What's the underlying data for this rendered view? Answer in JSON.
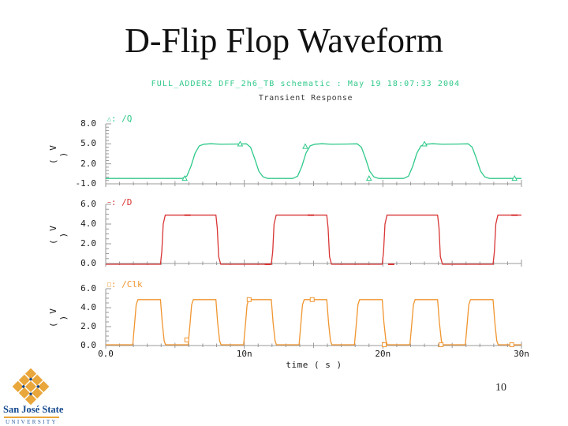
{
  "slide": {
    "title": "D-Flip Flop Waveform",
    "page_number": "10",
    "logo": {
      "wordmark": "San José State",
      "university": "UNIVERSITY"
    }
  },
  "colors": {
    "q_green": "#2fc98a",
    "d_red": "#d93535",
    "clk_orange": "#f0952f",
    "axis_gray": "#9a9a9a",
    "tick_text": "#1a1a1a",
    "subtitle_gray": "#3c3c3c",
    "sjsu_blue": "#15498f",
    "sjsu_gold": "#e9a63b"
  },
  "chart_data": {
    "type": "line",
    "header": "FULL_ADDER2 DFF_2h6_TB schematic : May 19 18:07:33 2004",
    "title": "Transient Response",
    "xlabel": "time ( s )",
    "xlim": [
      0,
      30
    ],
    "x_unit": "ns",
    "grid": false,
    "x_ticks": [
      {
        "label": "0.0",
        "t": 0
      },
      {
        "label": "10n",
        "t": 10
      },
      {
        "label": "20n",
        "t": 20
      },
      {
        "label": "30n",
        "t": 30
      }
    ],
    "plots": [
      {
        "signal": "/Q",
        "marker": "triangle",
        "marker_glyph": "△",
        "color": "#2fc98a",
        "ylabel": "( V )",
        "ylim": [
          -1,
          8
        ],
        "y_ticks": [
          {
            "label": "8.0",
            "v": 8
          },
          {
            "label": "5.0",
            "v": 5
          },
          {
            "label": "2.0",
            "v": 2
          },
          {
            "label": "-1.0",
            "v": -1
          }
        ],
        "low_V": -0.2,
        "high_V": 5.0,
        "edges": "rises at 6n, 14n, 22n; falls at 10n, 18n, 26n (slewed edges)",
        "points": [
          [
            0,
            -0.2
          ],
          [
            5.5,
            -0.2
          ],
          [
            5.85,
            0.15
          ],
          [
            6.15,
            1.6
          ],
          [
            6.45,
            3.6
          ],
          [
            6.75,
            4.7
          ],
          [
            7.1,
            4.95
          ],
          [
            7.6,
            5.02
          ],
          [
            8.3,
            4.93
          ],
          [
            9.4,
            4.97
          ],
          [
            10.15,
            5.0
          ],
          [
            10.45,
            4.5
          ],
          [
            10.75,
            2.8
          ],
          [
            11.05,
            0.9
          ],
          [
            11.35,
            0.05
          ],
          [
            11.7,
            -0.2
          ],
          [
            13.5,
            -0.2
          ],
          [
            13.85,
            0.15
          ],
          [
            14.15,
            1.6
          ],
          [
            14.45,
            3.6
          ],
          [
            14.75,
            4.7
          ],
          [
            15.1,
            4.95
          ],
          [
            15.6,
            5.02
          ],
          [
            16.3,
            4.93
          ],
          [
            17.4,
            4.97
          ],
          [
            18.15,
            5.0
          ],
          [
            18.45,
            4.5
          ],
          [
            18.75,
            2.8
          ],
          [
            19.05,
            0.9
          ],
          [
            19.35,
            0.05
          ],
          [
            19.7,
            -0.2
          ],
          [
            21.5,
            -0.2
          ],
          [
            21.85,
            0.15
          ],
          [
            22.15,
            1.6
          ],
          [
            22.45,
            3.6
          ],
          [
            22.75,
            4.7
          ],
          [
            23.1,
            4.95
          ],
          [
            23.6,
            5.02
          ],
          [
            24.3,
            4.93
          ],
          [
            25.4,
            4.97
          ],
          [
            26.15,
            5.0
          ],
          [
            26.45,
            4.5
          ],
          [
            26.75,
            2.8
          ],
          [
            27.05,
            0.9
          ],
          [
            27.35,
            0.05
          ],
          [
            27.7,
            -0.2
          ],
          [
            30,
            -0.2
          ]
        ],
        "markers": [
          [
            5.7,
            -0.2
          ],
          [
            9.7,
            4.97
          ],
          [
            14.4,
            4.6
          ],
          [
            19.0,
            -0.2
          ],
          [
            23.0,
            4.97
          ],
          [
            29.5,
            -0.2
          ]
        ]
      },
      {
        "signal": "/D",
        "marker": "dash",
        "marker_glyph": "−",
        "color": "#d93535",
        "ylabel": "( V )",
        "ylim": [
          0,
          6
        ],
        "y_ticks": [
          {
            "label": "6.0",
            "v": 6
          },
          {
            "label": "4.0",
            "v": 4
          },
          {
            "label": "2.0",
            "v": 2
          },
          {
            "label": "0.0",
            "v": 0
          }
        ],
        "low_V": 0.0,
        "high_V": 4.9,
        "edges": "period 8n, 50% duty: rises at 4n, 12n, 20n, 28n; falls at 8n, 16n, 24n",
        "points": [
          [
            0,
            -0.08
          ],
          [
            3.95,
            -0.08
          ],
          [
            4.05,
            1.2
          ],
          [
            4.15,
            4.0
          ],
          [
            4.3,
            4.9
          ],
          [
            7.95,
            4.9
          ],
          [
            8.05,
            3.6
          ],
          [
            8.15,
            0.7
          ],
          [
            8.3,
            -0.08
          ],
          [
            11.95,
            -0.08
          ],
          [
            12.05,
            1.2
          ],
          [
            12.15,
            4.0
          ],
          [
            12.3,
            4.9
          ],
          [
            15.95,
            4.9
          ],
          [
            16.05,
            3.6
          ],
          [
            16.15,
            0.7
          ],
          [
            16.3,
            -0.08
          ],
          [
            19.95,
            -0.08
          ],
          [
            20.05,
            1.2
          ],
          [
            20.15,
            4.0
          ],
          [
            20.3,
            4.9
          ],
          [
            23.95,
            4.9
          ],
          [
            24.05,
            3.6
          ],
          [
            24.15,
            0.7
          ],
          [
            24.3,
            -0.08
          ],
          [
            27.95,
            -0.08
          ],
          [
            28.05,
            1.2
          ],
          [
            28.15,
            4.0
          ],
          [
            28.3,
            4.9
          ],
          [
            30,
            4.9
          ]
        ],
        "markers": [
          [
            5.9,
            4.9
          ],
          [
            11.7,
            -0.08
          ],
          [
            14.8,
            4.9
          ],
          [
            20.6,
            -0.08
          ],
          [
            29.5,
            4.9
          ]
        ]
      },
      {
        "signal": "/Clk",
        "marker": "square",
        "marker_glyph": "□",
        "color": "#f0952f",
        "ylabel": "( V )",
        "ylim": [
          0,
          6
        ],
        "y_ticks": [
          {
            "label": "6.0",
            "v": 6
          },
          {
            "label": "4.0",
            "v": 4
          },
          {
            "label": "2.0",
            "v": 2
          },
          {
            "label": "0.0",
            "v": 0
          }
        ],
        "low_V": 0.0,
        "high_V": 4.9,
        "edges": "period 4n, 50% duty: rises at 2n, 6n, 10n, 14n, 18n, 22n, 26n; falls at 4n, 8n, 12n, 16n, 20n, 24n, 28n",
        "points": [
          [
            0,
            0.08
          ],
          [
            1.95,
            0.08
          ],
          [
            2.08,
            2.2
          ],
          [
            2.2,
            4.3
          ],
          [
            2.32,
            4.85
          ],
          [
            3.95,
            4.85
          ],
          [
            4.08,
            2.4
          ],
          [
            4.22,
            0.5
          ],
          [
            4.32,
            0.08
          ],
          [
            5.95,
            0.08
          ],
          [
            6.08,
            2.2
          ],
          [
            6.2,
            4.3
          ],
          [
            6.32,
            4.85
          ],
          [
            7.95,
            4.85
          ],
          [
            8.08,
            2.4
          ],
          [
            8.22,
            0.5
          ],
          [
            8.32,
            0.08
          ],
          [
            9.95,
            0.08
          ],
          [
            10.08,
            2.2
          ],
          [
            10.2,
            4.3
          ],
          [
            10.32,
            4.85
          ],
          [
            11.95,
            4.85
          ],
          [
            12.08,
            2.4
          ],
          [
            12.22,
            0.5
          ],
          [
            12.32,
            0.08
          ],
          [
            13.95,
            0.08
          ],
          [
            14.08,
            2.2
          ],
          [
            14.2,
            4.3
          ],
          [
            14.32,
            4.85
          ],
          [
            15.95,
            4.85
          ],
          [
            16.08,
            2.4
          ],
          [
            16.22,
            0.5
          ],
          [
            16.32,
            0.08
          ],
          [
            17.95,
            0.08
          ],
          [
            18.08,
            2.2
          ],
          [
            18.2,
            4.3
          ],
          [
            18.32,
            4.85
          ],
          [
            19.95,
            4.85
          ],
          [
            20.08,
            2.4
          ],
          [
            20.22,
            0.5
          ],
          [
            20.32,
            0.08
          ],
          [
            21.95,
            0.08
          ],
          [
            22.08,
            2.2
          ],
          [
            22.2,
            4.3
          ],
          [
            22.32,
            4.85
          ],
          [
            23.95,
            4.85
          ],
          [
            24.08,
            2.4
          ],
          [
            24.22,
            0.5
          ],
          [
            24.32,
            0.08
          ],
          [
            25.95,
            0.08
          ],
          [
            26.08,
            2.2
          ],
          [
            26.2,
            4.3
          ],
          [
            26.32,
            4.85
          ],
          [
            27.95,
            4.85
          ],
          [
            28.08,
            2.4
          ],
          [
            28.22,
            0.5
          ],
          [
            28.32,
            0.08
          ],
          [
            30,
            0.08
          ]
        ],
        "markers": [
          [
            5.85,
            0.6
          ],
          [
            10.35,
            4.85
          ],
          [
            14.9,
            4.85
          ],
          [
            20.1,
            0.08
          ],
          [
            24.2,
            0.08
          ],
          [
            29.3,
            0.08
          ]
        ]
      }
    ]
  }
}
